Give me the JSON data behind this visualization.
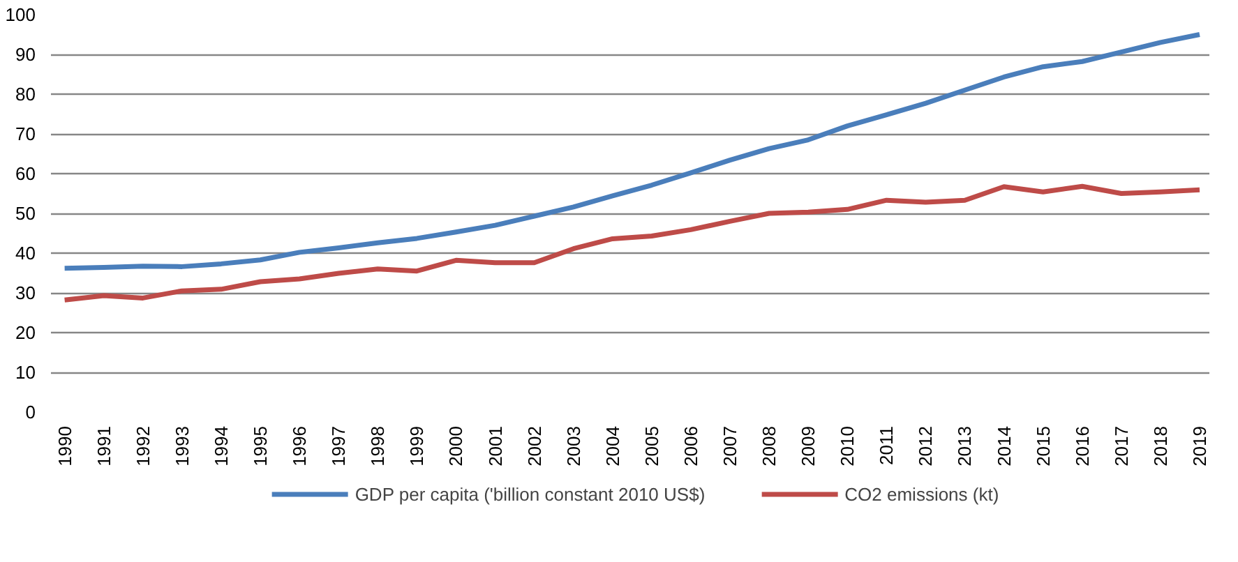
{
  "chart_data": {
    "type": "line",
    "categories": [
      "1990",
      "1991",
      "1992",
      "1993",
      "1994",
      "1995",
      "1996",
      "1997",
      "1998",
      "1999",
      "2000",
      "2001",
      "2002",
      "2003",
      "2004",
      "2005",
      "2006",
      "2007",
      "2008",
      "2009",
      "2010",
      "2011",
      "2012",
      "2013",
      "2014",
      "2015",
      "2016",
      "2017",
      "2018",
      "2019"
    ],
    "series": [
      {
        "name": "GDP per capita ('billion constant 2010 US$)",
        "color": "#4a7ebb",
        "values": [
          36.2,
          36.4,
          36.7,
          36.6,
          37.3,
          38.3,
          40.2,
          41.3,
          42.6,
          43.7,
          45.3,
          47.0,
          49.3,
          51.6,
          54.4,
          57.1,
          60.2,
          63.4,
          66.3,
          68.5,
          72.0,
          74.8,
          77.7,
          81.0,
          84.3,
          86.9,
          88.2,
          90.6,
          93.0,
          95.0
        ]
      },
      {
        "name": "CO2 emissions (kt)",
        "color": "#be4b48",
        "values": [
          28.2,
          29.3,
          28.7,
          30.5,
          30.9,
          32.8,
          33.5,
          34.9,
          36.0,
          35.5,
          38.2,
          37.6,
          37.6,
          41.1,
          43.6,
          44.3,
          45.9,
          48.0,
          50.0,
          50.3,
          51.0,
          53.3,
          52.8,
          53.3,
          56.7,
          55.4,
          56.8,
          55.0,
          55.4,
          55.9
        ]
      }
    ],
    "ylim": [
      0,
      100
    ],
    "yticks": [
      0,
      10,
      20,
      30,
      40,
      50,
      60,
      70,
      80,
      90,
      100
    ],
    "grid": "y",
    "legend": "bottom",
    "marker": "none",
    "line_style": "solid"
  }
}
